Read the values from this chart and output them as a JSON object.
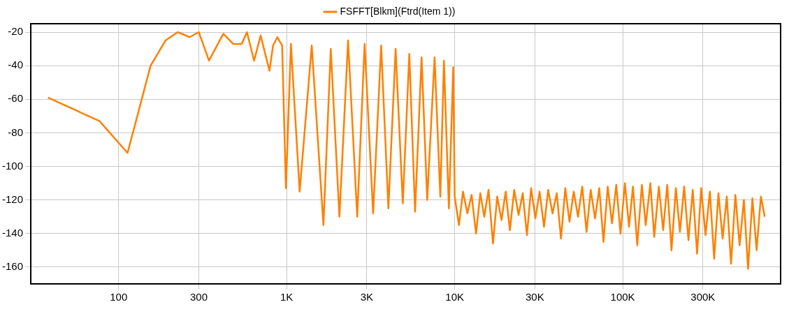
{
  "chart_data": {
    "type": "line",
    "log": "x",
    "grid": true,
    "legend": "top",
    "marker": "none",
    "line_style": "solid",
    "xlim": [
      30,
      870000
    ],
    "xticks": [
      {
        "value": 100,
        "label": "100"
      },
      {
        "value": 300,
        "label": "300"
      },
      {
        "value": 1000,
        "label": "1K"
      },
      {
        "value": 3000,
        "label": "3K"
      },
      {
        "value": 10000,
        "label": "10K"
      },
      {
        "value": 30000,
        "label": "30K"
      },
      {
        "value": 100000,
        "label": "100K"
      },
      {
        "value": 300000,
        "label": "300K"
      }
    ],
    "ylim": [
      -170,
      -15
    ],
    "yticks": [
      -20,
      -40,
      -60,
      -80,
      -100,
      -120,
      -140,
      -160
    ],
    "series": [
      {
        "name": "FSFFT[Blkm](Ftrd(Item 1))",
        "color": "#ff8000",
        "x": [
          38,
          77,
          113,
          155,
          190,
          225,
          265,
          300,
          345,
          420,
          480,
          540,
          580,
          640,
          700,
          790,
          830,
          880,
          940,
          990,
          1060,
          1195,
          1410,
          1655,
          1830,
          2060,
          2320,
          2630,
          2910,
          3270,
          3650,
          4030,
          4450,
          4910,
          5370,
          5810,
          6350,
          6860,
          7590,
          8210,
          8630,
          9230,
          9800,
          10000,
          10600,
          11200,
          11900,
          12600,
          13400,
          14200,
          15000,
          15900,
          16900,
          17900,
          19000,
          20100,
          21300,
          22600,
          24000,
          25400,
          26900,
          28500,
          30200,
          32000,
          34000,
          36000,
          38200,
          40500,
          42900,
          45500,
          48200,
          51100,
          54200,
          57400,
          60900,
          64500,
          68400,
          72500,
          76800,
          81400,
          86300,
          91500,
          97000,
          103000,
          109000,
          115000,
          122000,
          130000,
          137000,
          146000,
          154000,
          164000,
          174000,
          184000,
          195000,
          207000,
          219000,
          232000,
          246000,
          261000,
          277000,
          293000,
          311000,
          330000,
          350000,
          371000,
          393000,
          416000,
          441000,
          468000,
          496000,
          526000,
          557000,
          591000,
          626000,
          664000,
          700000
        ],
        "values": [
          -59,
          -73,
          -92,
          -40,
          -25,
          -20,
          -23,
          -20,
          -37,
          -21,
          -27,
          -27,
          -20,
          -37,
          -22,
          -43,
          -28,
          -23,
          -28,
          -113,
          -27,
          -115,
          -28,
          -135,
          -30,
          -130,
          -25,
          -130,
          -27,
          -128,
          -28,
          -125,
          -30,
          -122,
          -33,
          -127,
          -35,
          -120,
          -35,
          -118,
          -37,
          -125,
          -41,
          -118,
          -135,
          -115,
          -128,
          -117,
          -140,
          -116,
          -130,
          -114,
          -146,
          -118,
          -132,
          -115,
          -138,
          -114,
          -129,
          -116,
          -141,
          -113,
          -131,
          -115,
          -136,
          -114,
          -128,
          -116,
          -143,
          -113,
          -133,
          -115,
          -130,
          -112,
          -139,
          -114,
          -131,
          -113,
          -145,
          -112,
          -134,
          -111,
          -140,
          -110,
          -136,
          -112,
          -147,
          -111,
          -135,
          -110,
          -142,
          -112,
          -138,
          -111,
          -150,
          -113,
          -139,
          -112,
          -144,
          -114,
          -152,
          -113,
          -141,
          -115,
          -155,
          -116,
          -143,
          -118,
          -158,
          -117,
          -147,
          -120,
          -161,
          -119,
          -150,
          -118,
          -130
        ]
      }
    ]
  }
}
